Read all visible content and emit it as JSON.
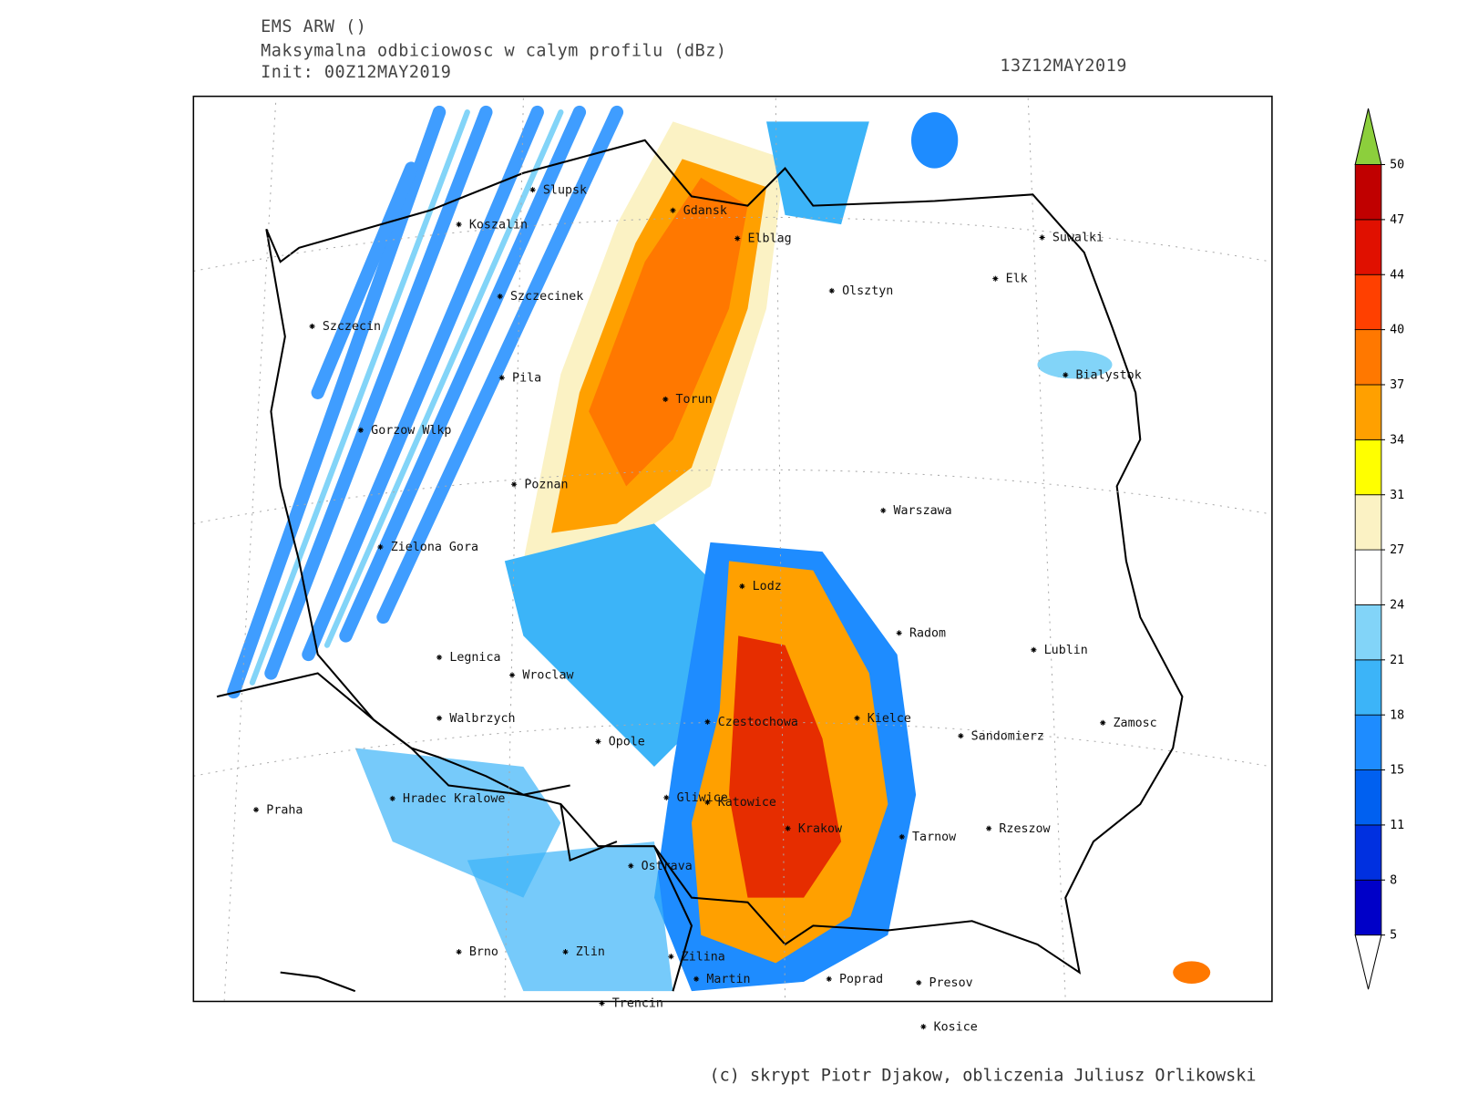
{
  "header": {
    "model": "EMS ARW ()",
    "field": "Maksymalna odbiciowosc w calym profilu (dBz)",
    "init": "Init: 00Z12MAY2019",
    "valid": "13Z12MAY2019"
  },
  "cities": [
    "Slupsk",
    "Koszalin",
    "Gdansk",
    "Elblag",
    "Suwalki",
    "Elk",
    "Olsztyn",
    "Szczecinek",
    "Szczecin",
    "Bialystok",
    "Pila",
    "Torun",
    "Gorzow Wlkp",
    "Poznan",
    "Warszawa",
    "Zielona Gora",
    "Lodz",
    "Radom",
    "Lublin",
    "Legnica",
    "Wroclaw",
    "Walbrzych",
    "Kielce",
    "Czestochowa",
    "Zamosc",
    "Opole",
    "Sandomierz",
    "Gliwice",
    "Katowice",
    "Hradec Kralowe",
    "Praha",
    "Krakow",
    "Rzeszow",
    "Tarnow",
    "Ostrava",
    "Brno",
    "Zlin",
    "Zilina",
    "Martin",
    "Poprad",
    "Presov",
    "Trencin",
    "Kosice"
  ],
  "colorbar": {
    "ticks": [
      5,
      8,
      11,
      15,
      18,
      21,
      24,
      27,
      31,
      34,
      37,
      40,
      44,
      47,
      50
    ],
    "colors": [
      "#0000c8",
      "#0030e0",
      "#0060f0",
      "#1e8cff",
      "#3cb4f8",
      "#82d4f8",
      "#ffffff",
      "#fbf2c4",
      "#ffff00",
      "#ffa000",
      "#ff7800",
      "#ff4000",
      "#e01000",
      "#c00000"
    ],
    "over_color": "#8ccf3c",
    "under_color": "#ffffff"
  },
  "footer": "(c) skrypt Piotr Djakow, obliczenia Juliusz Orlikowski"
}
